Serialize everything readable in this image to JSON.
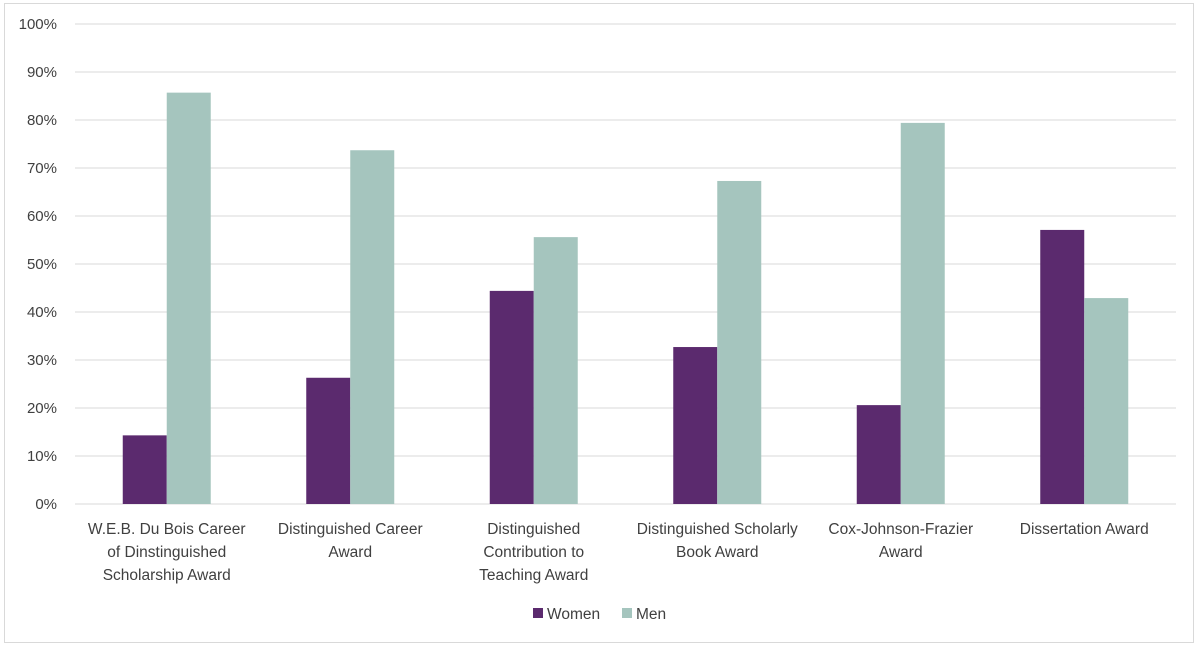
{
  "chart_data": {
    "type": "bar",
    "title": "",
    "xlabel": "",
    "ylabel": "",
    "ylim": [
      0,
      100
    ],
    "y_tick_step": 10,
    "y_tick_suffix": "%",
    "grid": true,
    "legend_position": "bottom",
    "categories": [
      [
        "W.E.B. Du Bois Career",
        "of Dinstinguished",
        "Scholarship Award"
      ],
      [
        "Distinguished Career",
        "Award"
      ],
      [
        "Distinguished",
        "Contribution to",
        "Teaching Award"
      ],
      [
        "Distinguished Scholarly",
        "Book Award"
      ],
      [
        "Cox-Johnson-Frazier",
        "Award"
      ],
      [
        "Dissertation Award"
      ]
    ],
    "series": [
      {
        "name": "Women",
        "color": "#5b2a6e",
        "values": [
          14.3,
          26.3,
          44.4,
          32.7,
          20.6,
          57.1
        ]
      },
      {
        "name": "Men",
        "color": "#a5c5be",
        "values": [
          85.7,
          73.7,
          55.6,
          67.3,
          79.4,
          42.9
        ]
      }
    ],
    "gridline_color": "#d9d9d9"
  }
}
